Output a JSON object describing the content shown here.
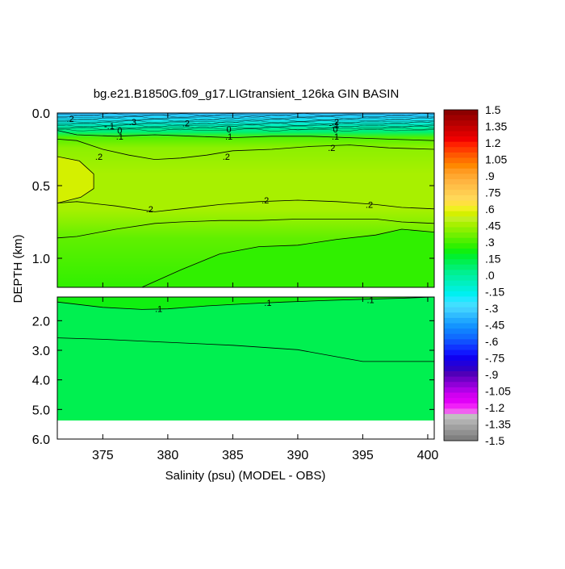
{
  "chart_data": {
    "type": "heatmap",
    "title": "bg.e21.B1850G.f09_g17.LIGtransient_126ka GIN BASIN",
    "xlabel": "Salinity (psu) (MODEL - OBS)",
    "ylabel": "DEPTH (km)",
    "xlim": [
      371.5,
      400.5
    ],
    "x_ticks": [
      375,
      380,
      385,
      390,
      395,
      400
    ],
    "x_tick_labels": [
      "375",
      "380",
      "385",
      "390",
      "395",
      "400"
    ],
    "upper_panel": {
      "ylim": [
        0.0,
        1.2
      ],
      "y_ticks": [
        0.0,
        0.5,
        1.0
      ],
      "y_tick_labels": [
        "0.0",
        "0.5",
        "1.0"
      ]
    },
    "lower_panel": {
      "ylim": [
        1.2,
        6.0
      ],
      "y_ticks": [
        2.0,
        3.0,
        4.0,
        5.0,
        6.0
      ],
      "y_tick_labels": [
        "2.0",
        "3.0",
        "4.0",
        "5.0",
        "6.0"
      ],
      "seafloor_depth": 5.35
    },
    "contours": [
      {
        "level": 0.2,
        "panel": "upper",
        "x": [
          371.5,
          373,
          376,
          379,
          381,
          384,
          387,
          390,
          393,
          396,
          398,
          400.5
        ],
        "y": [
          0.62,
          0.61,
          0.64,
          0.68,
          0.66,
          0.63,
          0.61,
          0.6,
          0.61,
          0.63,
          0.65,
          0.66
        ]
      },
      {
        "level": 0.15,
        "panel": "upper",
        "x": [
          371.5,
          373,
          376,
          379,
          381,
          384,
          387,
          390,
          393,
          396,
          398,
          400.5
        ],
        "y": [
          0.86,
          0.85,
          0.8,
          0.76,
          0.75,
          0.74,
          0.74,
          0.73,
          0.73,
          0.73,
          0.75,
          0.76
        ]
      },
      {
        "level": 0.15,
        "panel": "upper",
        "x": [
          378,
          381,
          384,
          387,
          390,
          393,
          396,
          398,
          400.5
        ],
        "y": [
          1.2,
          1.08,
          0.97,
          0.92,
          0.91,
          0.87,
          0.84,
          0.8,
          0.82
        ]
      },
      {
        "level": 0.2,
        "panel": "upper",
        "x": [
          371.5,
          373,
          375,
          377,
          379,
          381,
          383,
          385,
          388,
          391,
          394,
          397,
          400.5
        ],
        "y": [
          0.18,
          0.19,
          0.25,
          0.29,
          0.32,
          0.31,
          0.29,
          0.26,
          0.25,
          0.23,
          0.22,
          0.24,
          0.25
        ]
      },
      {
        "level": 0.1,
        "panel": "upper",
        "x": [
          371.5,
          373,
          376,
          379,
          382,
          385,
          388,
          391,
          394,
          397,
          400.5
        ],
        "y": [
          0.12,
          0.15,
          0.16,
          0.15,
          0.16,
          0.17,
          0.16,
          0.16,
          0.17,
          0.18,
          0.19
        ]
      },
      {
        "level": 0.1,
        "panel": "lower",
        "x": [
          371.5,
          375,
          378,
          380,
          383,
          386,
          389,
          392,
          395,
          398,
          400.5
        ],
        "y": [
          1.37,
          1.55,
          1.62,
          1.6,
          1.5,
          1.43,
          1.37,
          1.32,
          1.28,
          1.24,
          1.2
        ]
      },
      {
        "level": 0.05,
        "panel": "lower",
        "x": [
          371.5,
          375,
          380,
          385,
          390,
          395,
          400.5
        ],
        "y": [
          2.58,
          2.63,
          2.73,
          2.83,
          2.98,
          3.38,
          3.38
        ]
      }
    ],
    "contour_labels": [
      {
        "text": ".2",
        "x": 374.7,
        "y": 0.3
      },
      {
        "text": ".2",
        "x": 384.5,
        "y": 0.3
      },
      {
        "text": ".2",
        "x": 392.6,
        "y": 0.24
      },
      {
        "text": ".2",
        "x": 378.6,
        "y": 0.66
      },
      {
        "text": ".2",
        "x": 387.5,
        "y": 0.6
      },
      {
        "text": ".2",
        "x": 395.5,
        "y": 0.63
      },
      {
        "text": ".2",
        "x": 372.5,
        "y": 0.04
      },
      {
        "text": ".3",
        "x": 377.3,
        "y": 0.06
      },
      {
        "text": ".2",
        "x": 381.4,
        "y": 0.07
      },
      {
        "text": ".2",
        "x": 392.9,
        "y": 0.06
      },
      {
        "text": "-.1",
        "x": 375.5,
        "y": 0.09
      },
      {
        "text": "0",
        "x": 376.3,
        "y": 0.12
      },
      {
        "text": ".1",
        "x": 376.3,
        "y": 0.16
      },
      {
        "text": "0",
        "x": 384.7,
        "y": 0.11
      },
      {
        "text": ".1",
        "x": 384.7,
        "y": 0.16
      },
      {
        "text": "-.1",
        "x": 392.8,
        "y": 0.08
      },
      {
        "text": "0",
        "x": 392.9,
        "y": 0.11
      },
      {
        "text": ".1",
        "x": 392.9,
        "y": 0.16
      },
      {
        "text": ".1",
        "x": 379.3,
        "y": 1.6
      },
      {
        "text": ".1",
        "x": 387.7,
        "y": 1.39
      },
      {
        "text": ".1",
        "x": 395.6,
        "y": 1.29
      }
    ],
    "colorbar": {
      "labels": [
        "1.5",
        "1.35",
        "1.2",
        "1.05",
        ".9",
        ".75",
        ".6",
        ".45",
        ".3",
        ".15",
        ".0",
        "-.15",
        "-.3",
        "-.45",
        "-.6",
        "-.75",
        "-.9",
        "-1.05",
        "-1.2",
        "-1.35",
        "-1.5"
      ],
      "colors": [
        "#8c0000",
        "#a00000",
        "#b40000",
        "#c80000",
        "#dc0000",
        "#f00000",
        "#ff2000",
        "#ff3c00",
        "#ff5800",
        "#ff7000",
        "#ff8800",
        "#ff9a20",
        "#ffa830",
        "#ffb440",
        "#ffc048",
        "#ffcc50",
        "#ffd858",
        "#ffe040",
        "#f0f020",
        "#d4f000",
        "#c0f020",
        "#a8f000",
        "#8cf000",
        "#70f000",
        "#50f000",
        "#30f000",
        "#10f010",
        "#00f030",
        "#00f050",
        "#00f070",
        "#00f090",
        "#00f0a8",
        "#00f0c0",
        "#00f0d8",
        "#00f0f0",
        "#20e8ff",
        "#40e0ff",
        "#40d0ff",
        "#30bcff",
        "#20a8ff",
        "#1494ff",
        "#1080ff",
        "#106cff",
        "#1050ff",
        "#1034ff",
        "#1018ff",
        "#1000f0",
        "#2000dc",
        "#3000c8",
        "#5000b8",
        "#7000c8",
        "#9000d8",
        "#b000e8",
        "#d000f0",
        "#e000f8",
        "#f020f8",
        "#f060f0",
        "#c0c0c0",
        "#b0b0b0",
        "#a0a0a0",
        "#909090",
        "#808080"
      ]
    }
  }
}
